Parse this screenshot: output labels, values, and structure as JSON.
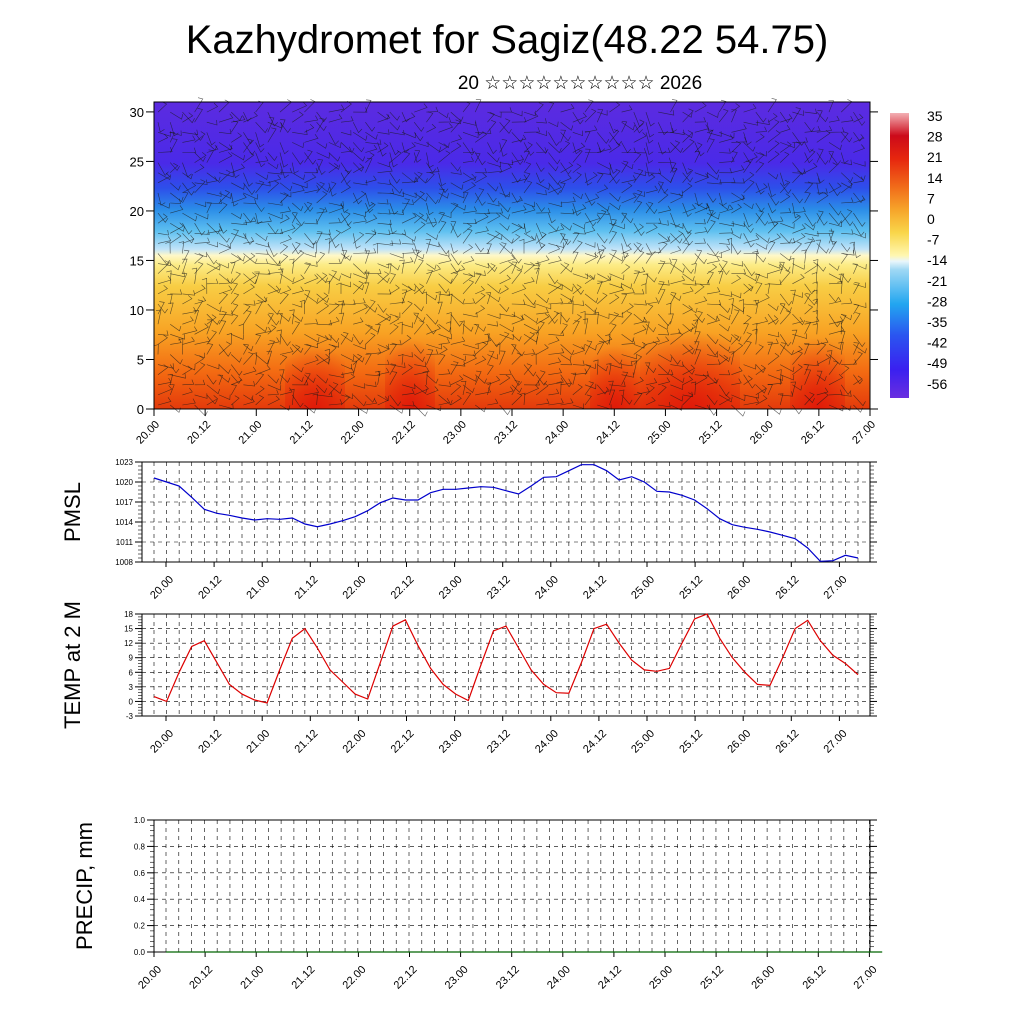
{
  "title": "Kazhydromet for Sagiz(48.22 54.75)",
  "subtitle": "20 ☆☆☆☆☆☆☆☆☆☆ 2026",
  "chart_data": [
    {
      "type": "heatmap",
      "name": "vertical cross-section",
      "x_tick_labels": [
        "20.00",
        "20.12",
        "21.00",
        "21.12",
        "22.00",
        "22.12",
        "23.00",
        "23.12",
        "24.00",
        "24.12",
        "25.00",
        "25.12",
        "26.00",
        "26.12",
        "27.00"
      ],
      "y_ticks": [
        0,
        5,
        10,
        15,
        20,
        25,
        30
      ],
      "ylim": [
        0,
        31
      ],
      "colorbar_labels": [
        "35",
        "28",
        "21",
        "14",
        "7",
        "0",
        "-7",
        "-14",
        "-21",
        "-28",
        "-35",
        "-42",
        "-49",
        "-56"
      ],
      "colors": {
        "warm": "#e8320a",
        "mid": "#f7c634",
        "freeze": "#fff8c4",
        "cold": "#2fb6ef",
        "coldest": "#5a1ee8"
      }
    },
    {
      "type": "line",
      "ylabel": "PMSL",
      "x_tick_labels": [
        "20.00",
        "20.12",
        "21.00",
        "21.12",
        "22.00",
        "22.12",
        "23.00",
        "23.12",
        "24.00",
        "24.12",
        "25.00",
        "25.12",
        "26.00",
        "26.12",
        "27.00"
      ],
      "y_ticks": [
        1008,
        1011,
        1014,
        1017,
        1020,
        1023
      ],
      "ylim": [
        1008,
        1023
      ],
      "color": "#0000cc",
      "x": [
        0,
        3,
        6,
        9,
        12,
        15,
        18,
        21,
        24,
        27,
        30,
        33,
        36,
        39,
        42,
        45,
        48,
        51,
        54,
        57,
        60,
        63,
        66,
        69,
        72,
        75,
        78,
        81,
        84,
        87,
        90,
        93,
        96,
        99,
        102,
        105,
        108,
        111,
        114,
        117,
        120,
        123,
        126,
        129,
        132,
        135,
        138,
        141,
        144,
        147,
        150,
        153,
        156,
        159,
        162,
        165,
        168
      ],
      "values": [
        1020.6,
        1020.0,
        1019.4,
        1017.7,
        1015.9,
        1015.3,
        1015.0,
        1014.6,
        1014.3,
        1014.5,
        1014.4,
        1014.6,
        1013.7,
        1013.3,
        1013.7,
        1014.2,
        1014.8,
        1015.7,
        1016.9,
        1017.6,
        1017.3,
        1017.3,
        1018.4,
        1018.9,
        1018.9,
        1019.1,
        1019.3,
        1019.2,
        1018.7,
        1018.2,
        1019.4,
        1020.7,
        1020.8,
        1021.7,
        1022.6,
        1022.6,
        1021.7,
        1020.3,
        1020.8,
        1020.0,
        1018.6,
        1018.5,
        1018.0,
        1017.3,
        1016.0,
        1014.5,
        1013.6,
        1013.2,
        1012.9,
        1012.5,
        1012.0,
        1011.5,
        1010.1,
        1008.1,
        1008.2,
        1009.0,
        1008.6
      ]
    },
    {
      "type": "line",
      "ylabel": "TEMP at 2 M",
      "x_tick_labels": [
        "20.00",
        "20.12",
        "21.00",
        "21.12",
        "22.00",
        "22.12",
        "23.00",
        "23.12",
        "24.00",
        "24.12",
        "25.00",
        "25.12",
        "26.00",
        "26.12",
        "27.00"
      ],
      "y_ticks": [
        -3,
        0,
        3,
        6,
        9,
        12,
        15,
        18
      ],
      "ylim": [
        -3,
        18
      ],
      "color": "#dd0000",
      "x": [
        0,
        3,
        6,
        9,
        12,
        15,
        18,
        21,
        24,
        27,
        30,
        33,
        36,
        39,
        42,
        45,
        48,
        51,
        54,
        57,
        60,
        63,
        66,
        69,
        72,
        75,
        78,
        81,
        84,
        87,
        90,
        93,
        96,
        99,
        102,
        105,
        108,
        111,
        114,
        117,
        120,
        123,
        126,
        129,
        132,
        135,
        138,
        141,
        144,
        147,
        150,
        153,
        156,
        159,
        162,
        165,
        168
      ],
      "values": [
        1.0,
        0.0,
        6.0,
        11.3,
        12.5,
        8.0,
        3.5,
        1.5,
        0.3,
        -0.3,
        6.5,
        13.0,
        15.0,
        11.0,
        6.5,
        4.0,
        1.5,
        0.5,
        8.0,
        15.5,
        16.8,
        11.5,
        6.8,
        3.5,
        1.5,
        0.2,
        7.5,
        14.5,
        15.5,
        11.0,
        6.5,
        3.5,
        1.8,
        1.7,
        8.0,
        15.0,
        15.9,
        12.0,
        8.5,
        6.5,
        6.2,
        6.8,
        12.0,
        17.0,
        18.0,
        13.0,
        9.0,
        6.0,
        3.5,
        3.3,
        9.0,
        15.0,
        16.7,
        12.5,
        9.5,
        7.8,
        5.5
      ]
    },
    {
      "type": "line",
      "ylabel": "PRECIP, mm",
      "x_tick_labels": [
        "20.00",
        "20.12",
        "21.00",
        "21.12",
        "22.00",
        "22.12",
        "23.00",
        "23.12",
        "24.00",
        "24.12",
        "25.00",
        "25.12",
        "26.00",
        "26.12",
        "27.00"
      ],
      "y_ticks": [
        "0.0",
        "0.2",
        "0.4",
        "0.6",
        "0.8",
        "1.0"
      ],
      "ylim": [
        0,
        1
      ],
      "color": "#006400",
      "x": [
        0,
        168
      ],
      "values": [
        0,
        0
      ]
    }
  ]
}
